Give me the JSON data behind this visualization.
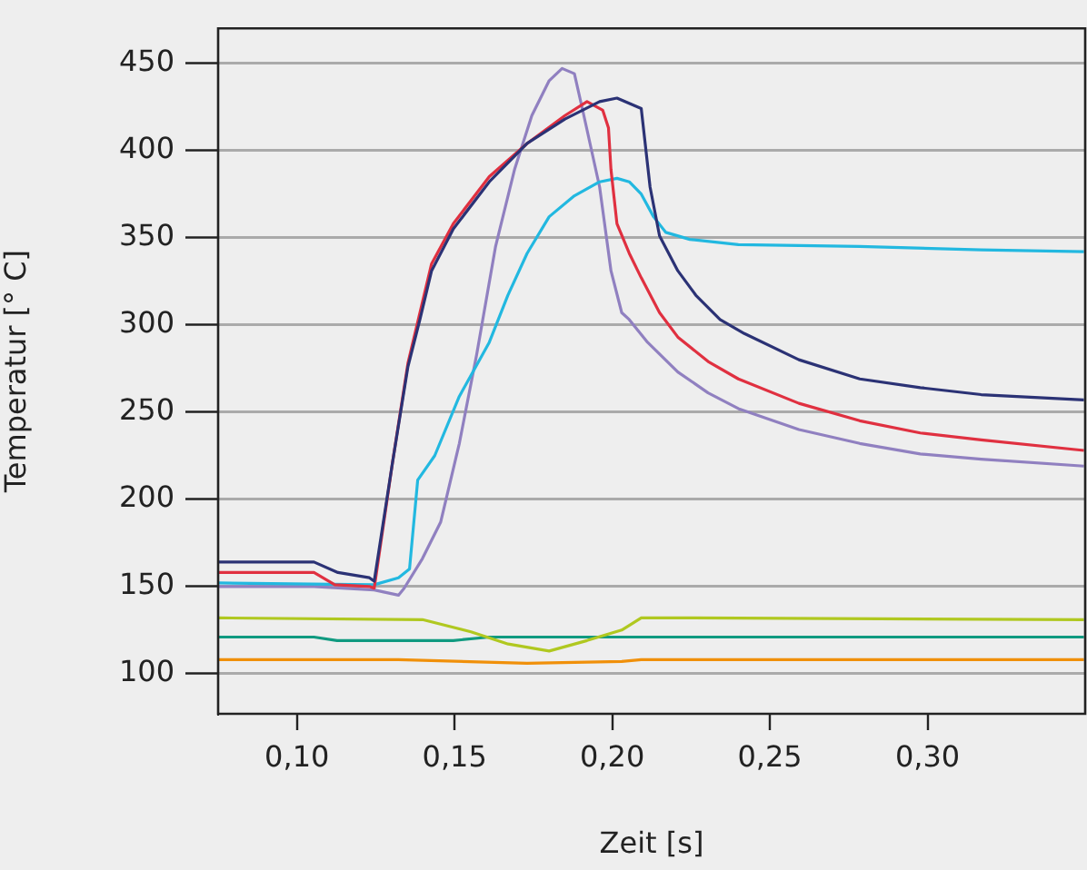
{
  "chart_data": {
    "type": "line",
    "xlabel": "Zeit [s]",
    "ylabel": "Temperatur [° C]",
    "xlim": [
      0.075,
      0.35
    ],
    "ylim": [
      77,
      470
    ],
    "xticks": [
      {
        "value": 0.1,
        "label": "0,10"
      },
      {
        "value": 0.15,
        "label": "0,15"
      },
      {
        "value": 0.2,
        "label": "0,20"
      },
      {
        "value": 0.25,
        "label": "0,25"
      },
      {
        "value": 0.3,
        "label": "0,30"
      }
    ],
    "yticks": [
      100,
      150,
      200,
      250,
      300,
      350,
      400,
      450
    ],
    "grid": "y",
    "legend": false,
    "marker": "none",
    "series": [
      {
        "color": "#2b3275",
        "x": [
          0.075,
          0.1054,
          0.113,
          0.123,
          0.1245,
          0.1303,
          0.1352,
          0.139,
          0.1427,
          0.1496,
          0.161,
          0.173,
          0.185,
          0.196,
          0.2015,
          0.2092,
          0.212,
          0.215,
          0.2208,
          0.2265,
          0.2342,
          0.2419,
          0.2592,
          0.2785,
          0.2977,
          0.317,
          0.3496
        ],
        "values": [
          164,
          164,
          158,
          155,
          153,
          221,
          276,
          303,
          331,
          355,
          382,
          404,
          418,
          428,
          430,
          424,
          379,
          351,
          331,
          317,
          303,
          295,
          280,
          269,
          264,
          260,
          257
        ]
      },
      {
        "color": "#e03040",
        "x": [
          0.075,
          0.1054,
          0.112,
          0.123,
          0.1245,
          0.1303,
          0.1352,
          0.1427,
          0.1496,
          0.161,
          0.173,
          0.185,
          0.192,
          0.197,
          0.1988,
          0.1996,
          0.2015,
          0.2054,
          0.2092,
          0.215,
          0.2208,
          0.2304,
          0.24,
          0.2592,
          0.2785,
          0.2977,
          0.317,
          0.3496
        ],
        "values": [
          158,
          158,
          151,
          150,
          149,
          221,
          278,
          335,
          358,
          385,
          404,
          420,
          428,
          423,
          413,
          389,
          358,
          341,
          327,
          307,
          293,
          279,
          269,
          255,
          245,
          238,
          234,
          228
        ]
      },
      {
        "color": "#22b8e0",
        "x": [
          0.075,
          0.1245,
          0.1322,
          0.1357,
          0.1383,
          0.1437,
          0.1515,
          0.161,
          0.1669,
          0.173,
          0.18,
          0.188,
          0.196,
          0.2015,
          0.2054,
          0.2092,
          0.2131,
          0.217,
          0.2246,
          0.24,
          0.2785,
          0.317,
          0.3496
        ],
        "values": [
          152,
          151,
          155,
          160,
          211,
          225,
          259,
          290,
          317,
          341,
          362,
          374,
          382,
          384,
          382,
          375,
          362,
          353,
          349,
          346,
          345,
          343,
          342
        ]
      },
      {
        "color": "#9080c0",
        "x": [
          0.075,
          0.1054,
          0.1245,
          0.1322,
          0.134,
          0.1398,
          0.1456,
          0.1515,
          0.157,
          0.163,
          0.169,
          0.1745,
          0.18,
          0.1841,
          0.188,
          0.191,
          0.196,
          0.1996,
          0.203,
          0.2054,
          0.2112,
          0.2208,
          0.2304,
          0.24,
          0.2592,
          0.2785,
          0.2977,
          0.317,
          0.3496
        ],
        "values": [
          150,
          150,
          148,
          145,
          149,
          166,
          187,
          232,
          283,
          345,
          389,
          420,
          440,
          447,
          444,
          420,
          379,
          331,
          307,
          303,
          290,
          273,
          261,
          252,
          240,
          232,
          226,
          223,
          219
        ]
      },
      {
        "color": "#b0c820",
        "x": [
          0.075,
          0.1398,
          0.1552,
          0.167,
          0.18,
          0.192,
          0.203,
          0.2092,
          0.2208,
          0.3496
        ],
        "values": [
          132,
          131,
          124,
          117,
          113,
          119,
          125,
          132,
          132,
          131
        ]
      },
      {
        "color": "#109a80",
        "x": [
          0.075,
          0.1054,
          0.1127,
          0.1496,
          0.161,
          0.3496
        ],
        "values": [
          121,
          121,
          119,
          119,
          121,
          121
        ]
      },
      {
        "color": "#f0900a",
        "x": [
          0.075,
          0.1322,
          0.173,
          0.203,
          0.2092,
          0.3496
        ],
        "values": [
          108,
          108,
          106,
          107,
          108,
          108
        ]
      }
    ]
  }
}
